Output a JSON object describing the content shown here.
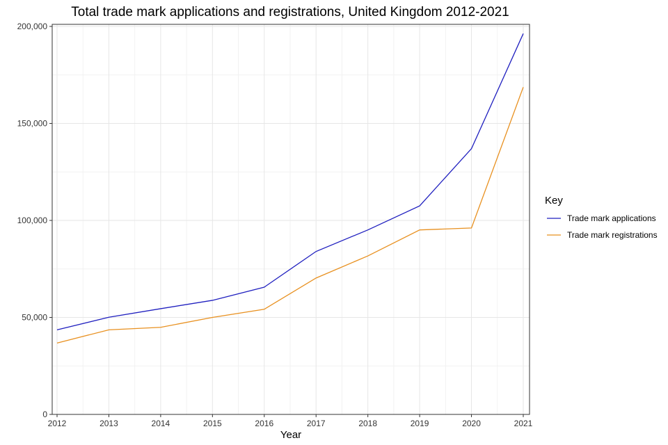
{
  "chart_data": {
    "type": "line",
    "title": "Total trade mark applications and registrations, United Kingdom 2012-2021",
    "xlabel": "Year",
    "ylabel": "",
    "x": [
      2012,
      2013,
      2014,
      2015,
      2016,
      2017,
      2018,
      2019,
      2020,
      2021
    ],
    "x_tick_labels": [
      "2012",
      "2013",
      "2014",
      "2015",
      "2016",
      "2017",
      "2018",
      "2019",
      "2020",
      "2021"
    ],
    "ylim": [
      0,
      200000
    ],
    "y_ticks": [
      0,
      50000,
      100000,
      150000,
      200000
    ],
    "y_tick_labels": [
      "0",
      "50,000",
      "100,000",
      "150,000",
      "200,000"
    ],
    "grid": true,
    "legend": {
      "title": "Key",
      "position": "right"
    },
    "series": [
      {
        "name": "Trade mark applications",
        "color": "#1f1fbf",
        "values": [
          43600,
          50100,
          54500,
          58800,
          65600,
          84000,
          95100,
          107500,
          137000,
          196300
        ]
      },
      {
        "name": "Trade mark registrations",
        "color": "#e8901f",
        "values": [
          36800,
          43600,
          44900,
          50000,
          54200,
          70300,
          81700,
          95100,
          96100,
          168700
        ]
      }
    ]
  }
}
